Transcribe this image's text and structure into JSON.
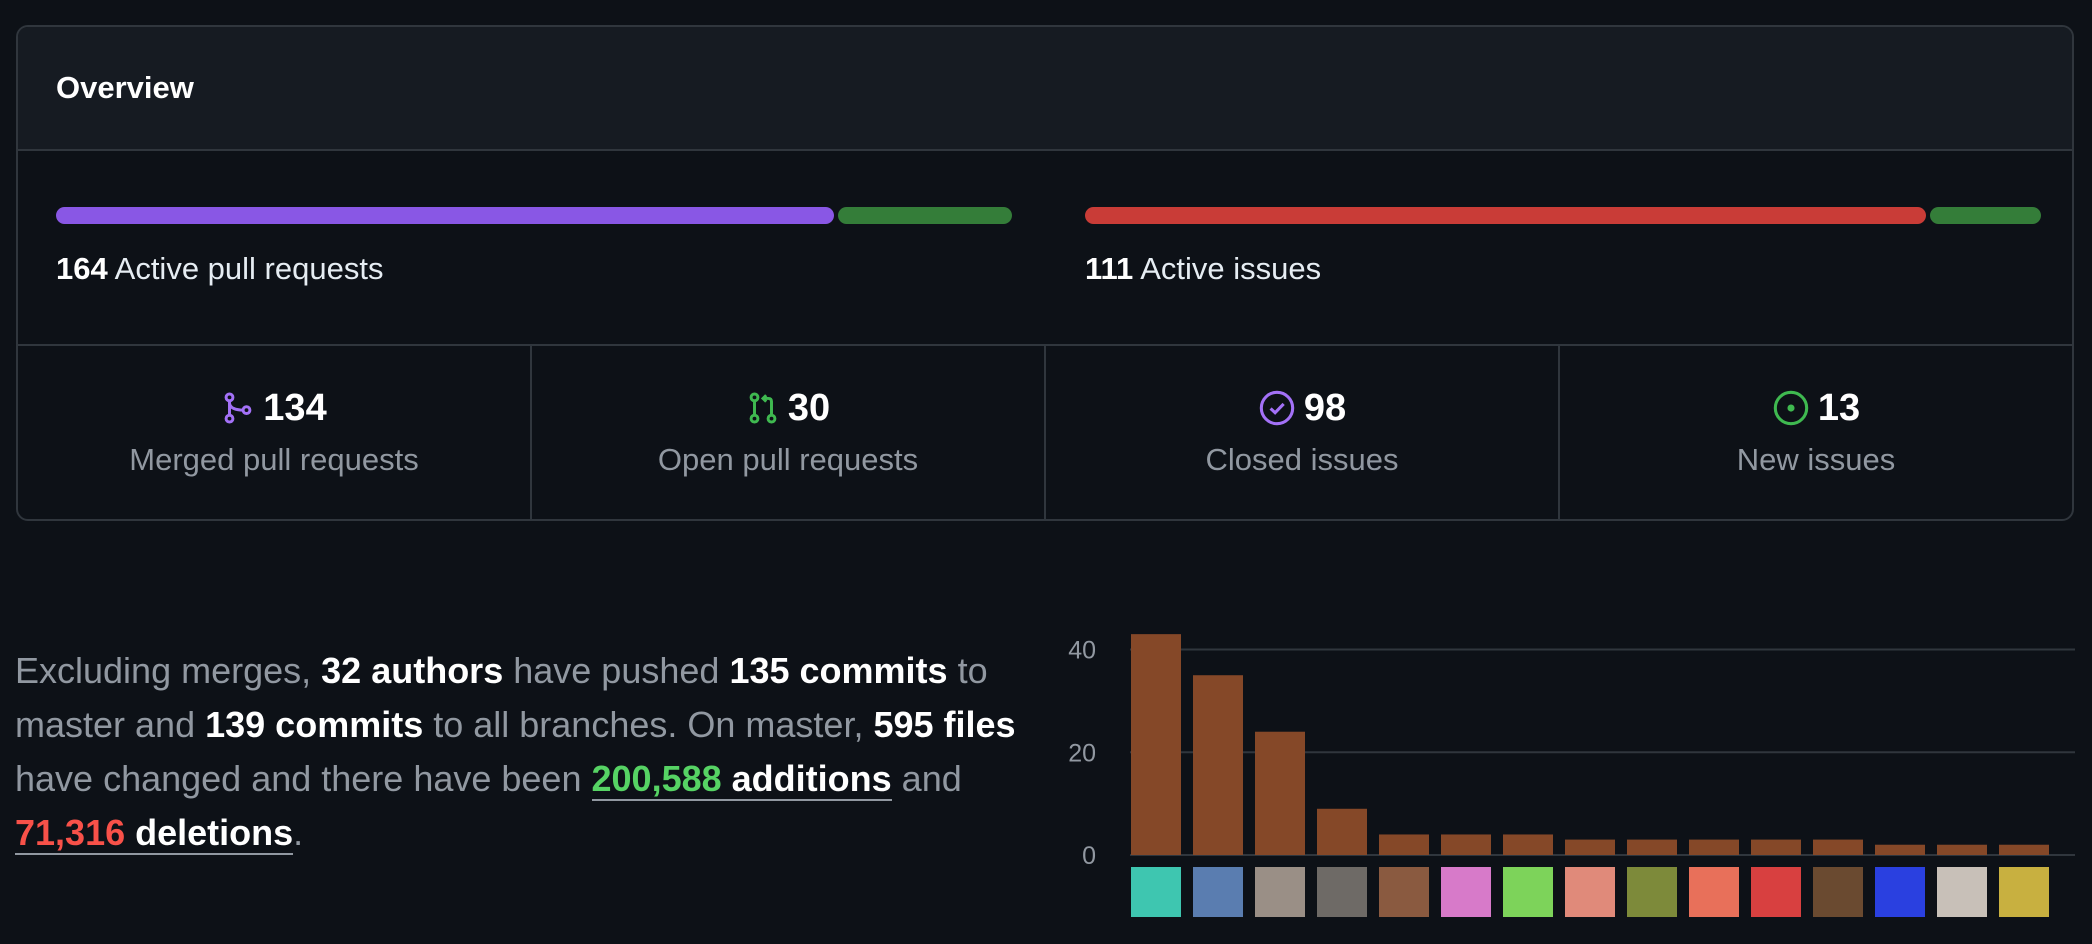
{
  "overview": {
    "title": "Overview",
    "pull_requests": {
      "count": "164",
      "label": "Active pull requests",
      "merged_fraction": 0.817
    },
    "issues": {
      "count": "111",
      "label": "Active issues",
      "closed_fraction": 0.883
    },
    "stats": [
      {
        "icon": "merged-pr-icon",
        "value": "134",
        "label": "Merged pull requests",
        "color": "#a371f7"
      },
      {
        "icon": "open-pr-icon",
        "value": "30",
        "label": "Open pull requests",
        "color": "#3fb950"
      },
      {
        "icon": "closed-issue-icon",
        "value": "98",
        "label": "Closed issues",
        "color": "#a371f7"
      },
      {
        "icon": "open-issue-icon",
        "value": "13",
        "label": "New issues",
        "color": "#3fb950"
      }
    ]
  },
  "summary": {
    "p1": "Excluding merges,",
    "authors": "32 authors",
    "p2": "have pushed",
    "master_commits": "135 commits",
    "p3": "to master and",
    "all_commits": "139 commits",
    "p4": "to all branches. On master,",
    "files": "595 files",
    "p5": "have changed and there have been",
    "additions_count": "200,588",
    "additions_label": "additions",
    "p6": "and",
    "deletions_count": "71,316",
    "deletions_label": "deletions",
    "p7": "."
  },
  "colors": {
    "merged": "#8957e5",
    "open": "#347d39",
    "closed_issue": "#c93c37",
    "bar": "#854828",
    "grid": "#30363d"
  },
  "chart_data": {
    "type": "bar",
    "categories": [
      "author-1",
      "author-2",
      "author-3",
      "author-4",
      "author-5",
      "author-6",
      "author-7",
      "author-8",
      "author-9",
      "author-10",
      "author-11",
      "author-12",
      "author-13",
      "author-14",
      "author-15"
    ],
    "values": [
      43,
      35,
      24,
      9,
      4,
      4,
      4,
      3,
      3,
      3,
      3,
      3,
      2,
      2,
      2
    ],
    "yticks": [
      0,
      20,
      40
    ],
    "ylim": [
      0,
      44
    ],
    "grid": true,
    "avatar_colors": [
      "#3ec6b0",
      "#5a7db0",
      "#9a8f86",
      "#6e6a66",
      "#8a5a40",
      "#d77ac9",
      "#7dd35a",
      "#e08a7a",
      "#7d8a3a",
      "#e8705a",
      "#d84040",
      "#6a4a30",
      "#2a40e0",
      "#c8c0b8",
      "#c8b040"
    ]
  }
}
